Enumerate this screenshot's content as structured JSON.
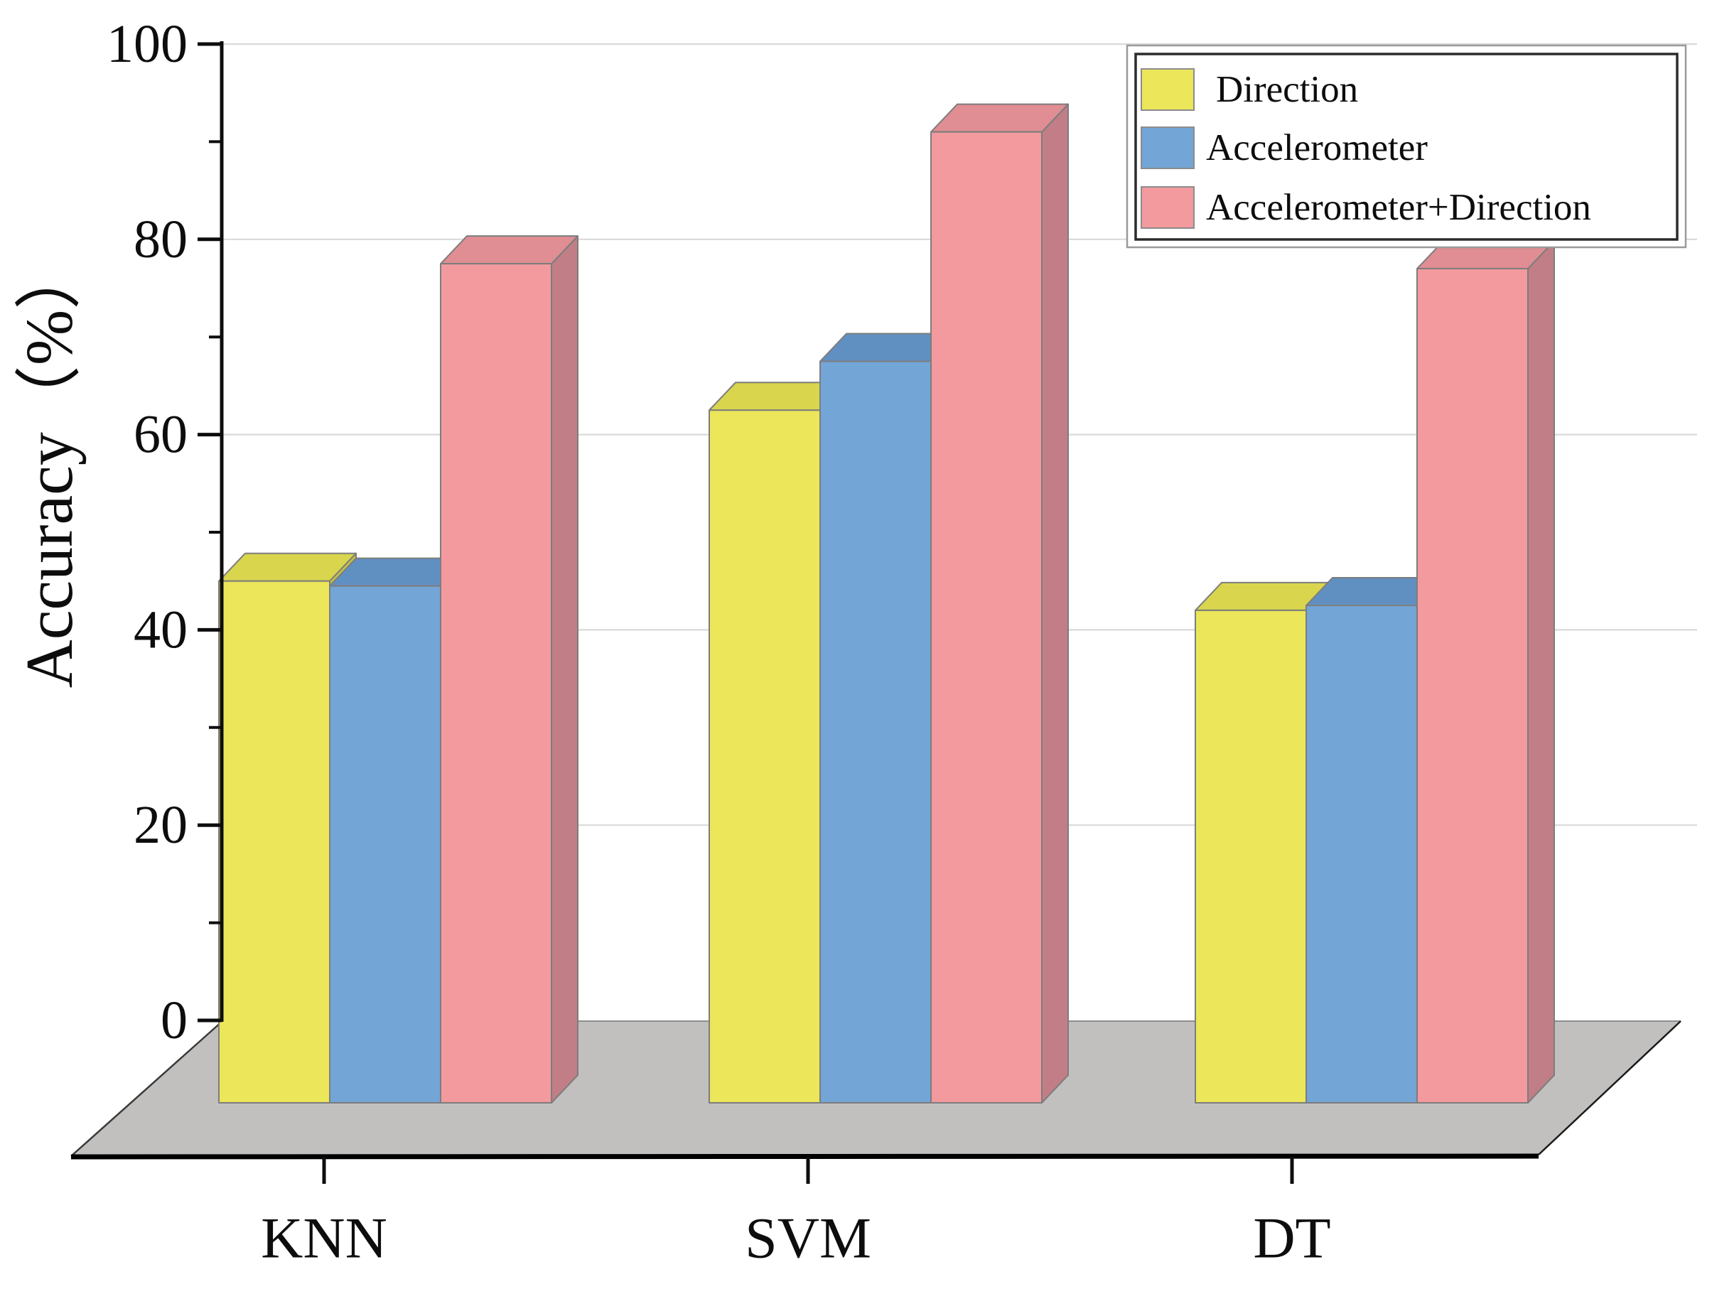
{
  "chart_data": {
    "type": "bar",
    "projection": "3d-oblique",
    "title": "",
    "categories": [
      "KNN",
      "SVM",
      "DT"
    ],
    "series": [
      {
        "name": "Direction",
        "values": [
          45,
          62.5,
          42
        ],
        "color": "#ebe65a",
        "color_top": "#d9d54d",
        "color_side": "#c6c243"
      },
      {
        "name": "Accelerometer",
        "values": [
          44.5,
          67.5,
          42.5
        ],
        "color": "#73a5d6",
        "color_top": "#6090c2",
        "color_side": "#527fb0"
      },
      {
        "name": "Accelerometer+Direction",
        "values": [
          77.5,
          91,
          77
        ],
        "color": "#f29a9e",
        "color_top": "#e08e93",
        "color_side": "#c17e86"
      }
    ],
    "ylabel": "Accuracy（%）",
    "xlabel": "",
    "ylim": [
      0,
      100
    ],
    "yticks": [
      0,
      20,
      40,
      60,
      80,
      100
    ],
    "ytick_labels": [
      "0",
      "20",
      "40",
      "60",
      "80",
      "100"
    ],
    "minor_yticks": [
      10,
      30,
      50,
      70,
      90
    ],
    "grid": true,
    "legend_position": "top-right",
    "floor_color": "#c1c0bf",
    "gridline_color": "#d9d9d9",
    "outline_color": "#7d7d7d",
    "axis_color": "#0d0d0d",
    "legend_border_color": "#2b2b2b",
    "legend_outer_border_color": "#9a9a9a",
    "background_color": "#ffffff"
  }
}
